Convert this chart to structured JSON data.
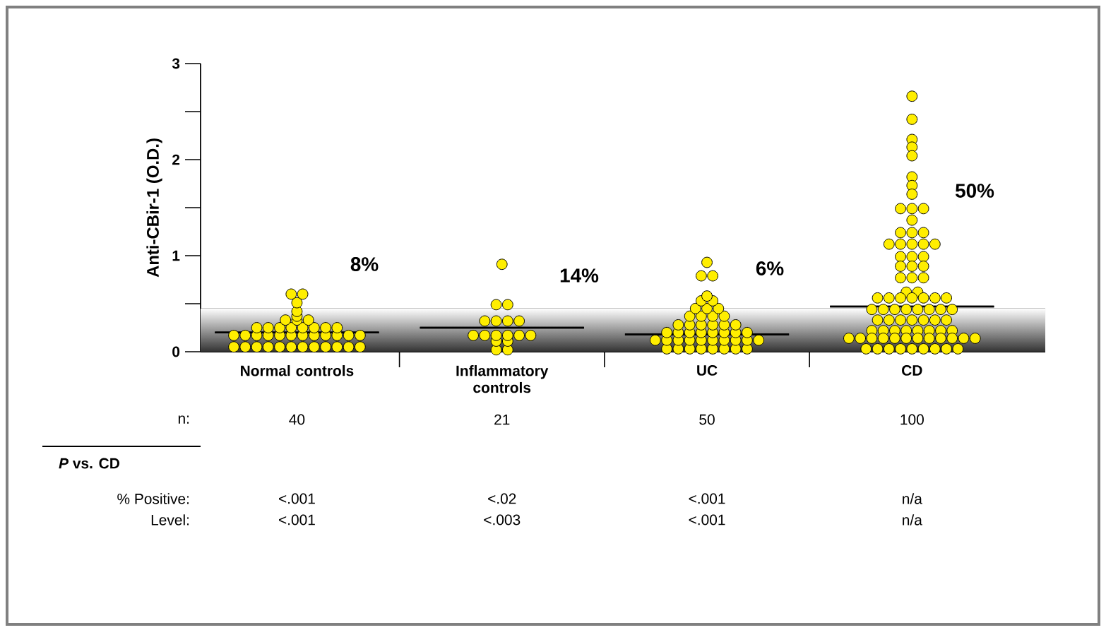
{
  "chart_data": {
    "type": "scatter",
    "ylabel": "Anti-CBir-1 (O.D.)",
    "categories": [
      "Normal controls",
      "Inflammatory controls",
      "UC",
      "CD"
    ],
    "ylim": [
      0,
      3
    ],
    "yticks": [
      0,
      {
        "value": 0.5,
        "label": null
      },
      1,
      {
        "value": 1.5,
        "label": null
      },
      2,
      {
        "value": 2.5,
        "label": null
      },
      3
    ],
    "marker": "circle",
    "bands": [
      {
        "axis": "y",
        "from": 0,
        "to": 0.45,
        "color": "#333333"
      }
    ],
    "series": [
      {
        "color": "#ffee00",
        "x": [
          "Normal controls",
          "Normal controls",
          "Normal controls",
          "Normal controls",
          "Normal controls",
          "Normal controls",
          "Normal controls",
          "Normal controls",
          "Normal controls",
          "Normal controls",
          "Normal controls",
          "Normal controls",
          "Normal controls",
          "Normal controls",
          "Normal controls",
          "Normal controls",
          "Normal controls",
          "Normal controls",
          "Normal controls",
          "Normal controls",
          "Normal controls",
          "Normal controls",
          "Normal controls",
          "Normal controls",
          "Normal controls",
          "Normal controls",
          "Normal controls",
          "Normal controls",
          "Normal controls",
          "Normal controls",
          "Normal controls",
          "Normal controls",
          "Normal controls",
          "Normal controls",
          "Normal controls",
          "Normal controls",
          "Normal controls",
          "Normal controls",
          "Normal controls",
          "Normal controls",
          "Inflammatory controls",
          "Inflammatory controls",
          "Inflammatory controls",
          "Inflammatory controls",
          "Inflammatory controls",
          "Inflammatory controls",
          "Inflammatory controls",
          "Inflammatory controls",
          "Inflammatory controls",
          "Inflammatory controls",
          "Inflammatory controls",
          "Inflammatory controls",
          "Inflammatory controls",
          "Inflammatory controls",
          "Inflammatory controls",
          "Inflammatory controls",
          "Inflammatory controls",
          "UC",
          "UC",
          "UC",
          "UC",
          "UC",
          "UC",
          "UC",
          "UC",
          "UC",
          "UC",
          "UC",
          "UC",
          "UC",
          "UC",
          "UC",
          "UC",
          "UC",
          "UC",
          "UC",
          "UC",
          "UC",
          "UC",
          "UC",
          "UC",
          "UC",
          "UC",
          "UC",
          "UC",
          "UC",
          "UC",
          "UC",
          "UC",
          "UC",
          "UC",
          "UC",
          "UC",
          "UC",
          "UC",
          "UC",
          "UC",
          "UC",
          "UC",
          "UC",
          "UC",
          "UC",
          "CD",
          "CD",
          "CD",
          "CD",
          "CD",
          "CD",
          "CD",
          "CD",
          "CD",
          "CD",
          "CD",
          "CD",
          "CD",
          "CD",
          "CD",
          "CD",
          "CD",
          "CD",
          "CD",
          "CD",
          "CD",
          "CD",
          "CD",
          "CD",
          "CD",
          "CD",
          "CD",
          "CD",
          "CD",
          "CD",
          "CD",
          "CD",
          "CD",
          "CD",
          "CD",
          "CD",
          "CD",
          "CD",
          "CD",
          "CD",
          "CD",
          "CD",
          "CD",
          "CD",
          "CD",
          "CD",
          "CD",
          "CD",
          "CD",
          "CD",
          "CD",
          "CD",
          "CD",
          "CD",
          "CD",
          "CD",
          "CD",
          "CD",
          "CD",
          "CD",
          "CD",
          "CD",
          "CD",
          "CD",
          "CD",
          "CD",
          "CD",
          "CD",
          "CD",
          "CD",
          "CD",
          "CD",
          "CD",
          "CD",
          "CD",
          "CD",
          "CD",
          "CD",
          "CD",
          "CD",
          "CD",
          "CD"
        ],
        "values": [
          0.05,
          0.05,
          0.05,
          0.05,
          0.05,
          0.05,
          0.05,
          0.05,
          0.05,
          0.05,
          0.05,
          0.05,
          0.17,
          0.17,
          0.17,
          0.17,
          0.17,
          0.17,
          0.17,
          0.17,
          0.17,
          0.17,
          0.17,
          0.17,
          0.25,
          0.25,
          0.25,
          0.25,
          0.25,
          0.25,
          0.25,
          0.25,
          0.33,
          0.33,
          0.33,
          0.37,
          0.42,
          0.51,
          0.6,
          0.6,
          0.02,
          0.02,
          0.11,
          0.11,
          0.17,
          0.17,
          0.17,
          0.17,
          0.17,
          0.17,
          0.32,
          0.32,
          0.32,
          0.32,
          0.49,
          0.49,
          0.91,
          0.03,
          0.03,
          0.03,
          0.03,
          0.03,
          0.03,
          0.03,
          0.03,
          0.12,
          0.12,
          0.12,
          0.12,
          0.12,
          0.12,
          0.12,
          0.12,
          0.12,
          0.12,
          0.2,
          0.2,
          0.2,
          0.2,
          0.2,
          0.2,
          0.2,
          0.2,
          0.28,
          0.28,
          0.28,
          0.28,
          0.28,
          0.28,
          0.37,
          0.37,
          0.37,
          0.37,
          0.45,
          0.45,
          0.45,
          0.53,
          0.53,
          0.58,
          0.79,
          0.79,
          0.93,
          2.66,
          2.42,
          2.21,
          2.13,
          2.04,
          1.82,
          1.73,
          1.64,
          1.49,
          1.49,
          1.49,
          1.37,
          1.24,
          1.24,
          1.24,
          1.12,
          1.12,
          1.12,
          1.12,
          1.12,
          0.99,
          0.99,
          0.99,
          0.89,
          0.89,
          0.89,
          0.77,
          0.77,
          0.77,
          0.62,
          0.62,
          0.56,
          0.56,
          0.56,
          0.56,
          0.56,
          0.56,
          0.56,
          0.44,
          0.44,
          0.44,
          0.44,
          0.44,
          0.44,
          0.44,
          0.44,
          0.33,
          0.33,
          0.33,
          0.33,
          0.33,
          0.33,
          0.33,
          0.22,
          0.22,
          0.22,
          0.22,
          0.22,
          0.22,
          0.22,
          0.22,
          0.14,
          0.14,
          0.14,
          0.14,
          0.14,
          0.14,
          0.14,
          0.14,
          0.14,
          0.14,
          0.14,
          0.14,
          0.03,
          0.03,
          0.03,
          0.03,
          0.03,
          0.03,
          0.03,
          0.03,
          0.03
        ]
      },
      {
        "type": "box",
        "color": "#000000",
        "boxes": [
          {
            "low": 0.2,
            "q1": 0.2,
            "median": 0.2,
            "q3": 0.2,
            "high": 0.2
          },
          {
            "low": 0.25,
            "q1": 0.25,
            "median": 0.25,
            "q3": 0.25,
            "high": 0.25
          },
          {
            "low": 0.18,
            "q1": 0.18,
            "median": 0.18,
            "q3": 0.18,
            "high": 0.18
          },
          {
            "low": 0.47,
            "q1": 0.47,
            "median": 0.47,
            "q3": 0.47,
            "high": 0.47
          }
        ]
      }
    ],
    "annotations": [
      "8%",
      "14%",
      "6%",
      "50%",
      "n:",
      "40",
      "21",
      "50",
      "100",
      "*P* vs. CD",
      "% Positive:",
      "<.001",
      "<.02",
      "<.001",
      "n/a",
      "Level:",
      "<.001",
      "<.003",
      "<.001",
      "n/a"
    ]
  }
}
